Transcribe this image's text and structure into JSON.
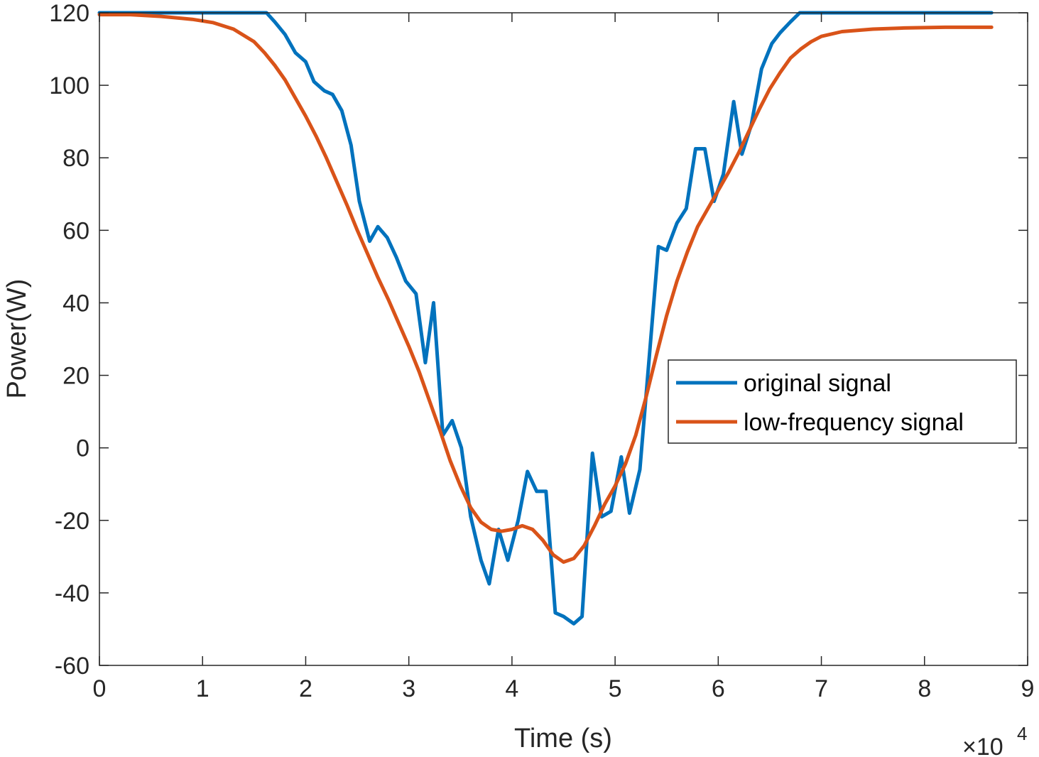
{
  "chart_data": {
    "type": "line",
    "xlabel": "Time (s)",
    "ylabel": "Power(W)",
    "x_multiplier_label": "×10",
    "x_multiplier_exponent": "4",
    "xlim": [
      0,
      9
    ],
    "ylim": [
      -60,
      120
    ],
    "x_ticks": [
      0,
      1,
      2,
      3,
      4,
      5,
      6,
      7,
      8,
      9
    ],
    "x_tick_labels": [
      "0",
      "1",
      "2",
      "3",
      "4",
      "5",
      "6",
      "7",
      "8",
      "9"
    ],
    "y_ticks": [
      -60,
      -40,
      -20,
      0,
      20,
      40,
      60,
      80,
      100,
      120
    ],
    "y_tick_labels": [
      "-60",
      "-40",
      "-20",
      "0",
      "20",
      "40",
      "60",
      "80",
      "100",
      "120"
    ],
    "grid": false,
    "legend_position": "right",
    "series": [
      {
        "name": "original signal",
        "color": "#0072BD",
        "points": [
          [
            0,
            120
          ],
          [
            1.62,
            120
          ],
          [
            1.7,
            117.5
          ],
          [
            1.8,
            114
          ],
          [
            1.9,
            109
          ],
          [
            2.0,
            106.5
          ],
          [
            2.08,
            101
          ],
          [
            2.18,
            98.5
          ],
          [
            2.26,
            97.5
          ],
          [
            2.35,
            93
          ],
          [
            2.44,
            83.5
          ],
          [
            2.52,
            68
          ],
          [
            2.62,
            57
          ],
          [
            2.7,
            61
          ],
          [
            2.79,
            58
          ],
          [
            2.88,
            52.5
          ],
          [
            2.97,
            46
          ],
          [
            3.07,
            42.5
          ],
          [
            3.16,
            23.5
          ],
          [
            3.24,
            40
          ],
          [
            3.33,
            3.5
          ],
          [
            3.42,
            7.5
          ],
          [
            3.51,
            0
          ],
          [
            3.6,
            -19
          ],
          [
            3.7,
            -31
          ],
          [
            3.78,
            -37.5
          ],
          [
            3.87,
            -22.5
          ],
          [
            3.96,
            -31
          ],
          [
            4.06,
            -20
          ],
          [
            4.15,
            -6.5
          ],
          [
            4.24,
            -12
          ],
          [
            4.33,
            -12
          ],
          [
            4.42,
            -45.5
          ],
          [
            4.5,
            -46.5
          ],
          [
            4.6,
            -48.5
          ],
          [
            4.68,
            -46.5
          ],
          [
            4.78,
            -1.5
          ],
          [
            4.87,
            -19
          ],
          [
            4.96,
            -17.5
          ],
          [
            5.06,
            -2.5
          ],
          [
            5.14,
            -18
          ],
          [
            5.24,
            -6
          ],
          [
            5.33,
            24.5
          ],
          [
            5.42,
            55.5
          ],
          [
            5.5,
            54.5
          ],
          [
            5.6,
            62
          ],
          [
            5.69,
            66
          ],
          [
            5.78,
            82.5
          ],
          [
            5.87,
            82.5
          ],
          [
            5.96,
            68
          ],
          [
            6.05,
            75.5
          ],
          [
            6.15,
            95.5
          ],
          [
            6.23,
            81
          ],
          [
            6.32,
            89
          ],
          [
            6.42,
            104.5
          ],
          [
            6.52,
            111.5
          ],
          [
            6.6,
            114.5
          ],
          [
            6.7,
            117.5
          ],
          [
            6.79,
            120
          ],
          [
            8.65,
            120
          ]
        ]
      },
      {
        "name": "low-frequency signal",
        "color": "#D95319",
        "points": [
          [
            0,
            119.5
          ],
          [
            0.3,
            119.5
          ],
          [
            0.6,
            119
          ],
          [
            0.9,
            118.2
          ],
          [
            1.1,
            117.3
          ],
          [
            1.3,
            115.5
          ],
          [
            1.5,
            112
          ],
          [
            1.6,
            109
          ],
          [
            1.7,
            105.5
          ],
          [
            1.8,
            101.5
          ],
          [
            1.9,
            96.5
          ],
          [
            2.0,
            91.5
          ],
          [
            2.1,
            86
          ],
          [
            2.2,
            80
          ],
          [
            2.3,
            73.5
          ],
          [
            2.4,
            67
          ],
          [
            2.5,
            60
          ],
          [
            2.6,
            53.5
          ],
          [
            2.7,
            47
          ],
          [
            2.8,
            41
          ],
          [
            2.9,
            34.5
          ],
          [
            3.0,
            28
          ],
          [
            3.1,
            21
          ],
          [
            3.2,
            13
          ],
          [
            3.3,
            5
          ],
          [
            3.4,
            -3.5
          ],
          [
            3.5,
            -10.5
          ],
          [
            3.6,
            -16.5
          ],
          [
            3.7,
            -20.5
          ],
          [
            3.8,
            -22.5
          ],
          [
            3.9,
            -23
          ],
          [
            4.0,
            -22.5
          ],
          [
            4.1,
            -21.5
          ],
          [
            4.2,
            -22.5
          ],
          [
            4.3,
            -25.5
          ],
          [
            4.4,
            -29.5
          ],
          [
            4.5,
            -31.5
          ],
          [
            4.6,
            -30.5
          ],
          [
            4.7,
            -27
          ],
          [
            4.8,
            -21.5
          ],
          [
            4.9,
            -15.5
          ],
          [
            5.0,
            -10.5
          ],
          [
            5.1,
            -4.5
          ],
          [
            5.2,
            3.5
          ],
          [
            5.3,
            14
          ],
          [
            5.4,
            25.5
          ],
          [
            5.5,
            36.5
          ],
          [
            5.6,
            46
          ],
          [
            5.7,
            54
          ],
          [
            5.8,
            61
          ],
          [
            5.9,
            66
          ],
          [
            6.0,
            71
          ],
          [
            6.1,
            76
          ],
          [
            6.2,
            81.5
          ],
          [
            6.3,
            87.5
          ],
          [
            6.4,
            93.5
          ],
          [
            6.5,
            99
          ],
          [
            6.6,
            103.5
          ],
          [
            6.7,
            107.5
          ],
          [
            6.8,
            110
          ],
          [
            6.9,
            112
          ],
          [
            7.0,
            113.5
          ],
          [
            7.2,
            114.8
          ],
          [
            7.5,
            115.5
          ],
          [
            7.8,
            115.8
          ],
          [
            8.2,
            116
          ],
          [
            8.65,
            116
          ]
        ]
      }
    ]
  }
}
